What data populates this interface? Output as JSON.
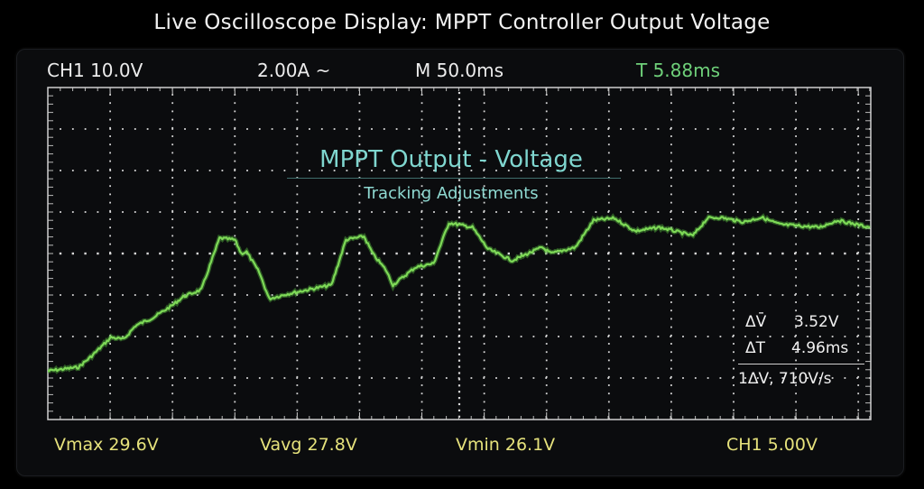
{
  "title": "Live Oscilloscope Display: MPPT Controller Output Voltage",
  "header": {
    "ch1_scale": "CH1 10.0V",
    "current_scale": "2.00A ~",
    "timebase": "M 50.0ms",
    "trigger": "T 5.88ms"
  },
  "footer": {
    "vmax": "Vmax 29.6V",
    "vavg": "Vavg 27.8V",
    "vmin": "Vmin 26.1V",
    "ch1": "CH1 5.00V"
  },
  "measurements": {
    "delta_v_label": "ΔV̄",
    "delta_v": "3.52V",
    "delta_t_label": "ΔT",
    "delta_t": "4.96ms",
    "slew": "1ΔV, 710V/s"
  },
  "colors": {
    "trace": "#7ed957",
    "header_text": "#ececec",
    "trigger_text": "#6fd17a",
    "footer_text": "#e6e27c",
    "plot_title": "#7fd6cf",
    "grid": "#d8d8d8"
  },
  "chart_data": {
    "type": "line",
    "title": "MPPT Output - Voltage",
    "subtitle": "Tracking Adjustments",
    "xlabel": "",
    "ylabel": "",
    "xlim": [
      0,
      660
    ],
    "ylim": [
      -40,
      40
    ],
    "x_div": 50,
    "y_div": 10,
    "grid": true,
    "series": [
      {
        "x": [
          0,
          24.6,
          34.1,
          50.7,
          60.9,
          70.3,
          84.8,
          99.3,
          108.7,
          123.2,
          137.7,
          150.0,
          155.1,
          159.4,
          169.6,
          177.5,
          191.3,
          205.8,
          227.5,
          239.1,
          253.6,
          260.9,
          271.0,
          276.8,
          294.9,
          309.4,
          321.7,
          340.6,
          352.9,
          372.5,
          396.4,
          403.6,
          423.2,
          437.7,
          454.3,
          471.0,
          490.6,
          517.4,
          529.0,
          539.1,
          557.9,
          572.4,
          587.0,
          618.8,
          633.3,
          659.4
        ],
        "y": [
          -28.3,
          -27.4,
          -25.0,
          -20.2,
          -20.7,
          -17.4,
          -15.4,
          -12.6,
          -10.4,
          -8.7,
          3.7,
          3.3,
          0,
          0.4,
          -4.6,
          -10.9,
          -9.8,
          -8.9,
          -7.6,
          3.3,
          4.1,
          -0.2,
          -3.9,
          -7.6,
          -3.3,
          -2.4,
          7.4,
          6.3,
          1.1,
          -1.7,
          1.5,
          0,
          1.5,
          8.0,
          8.5,
          5.4,
          6.3,
          4.3,
          8.5,
          8.7,
          7.6,
          8.7,
          7.0,
          6.3,
          8.0,
          6.3
        ]
      }
    ]
  }
}
